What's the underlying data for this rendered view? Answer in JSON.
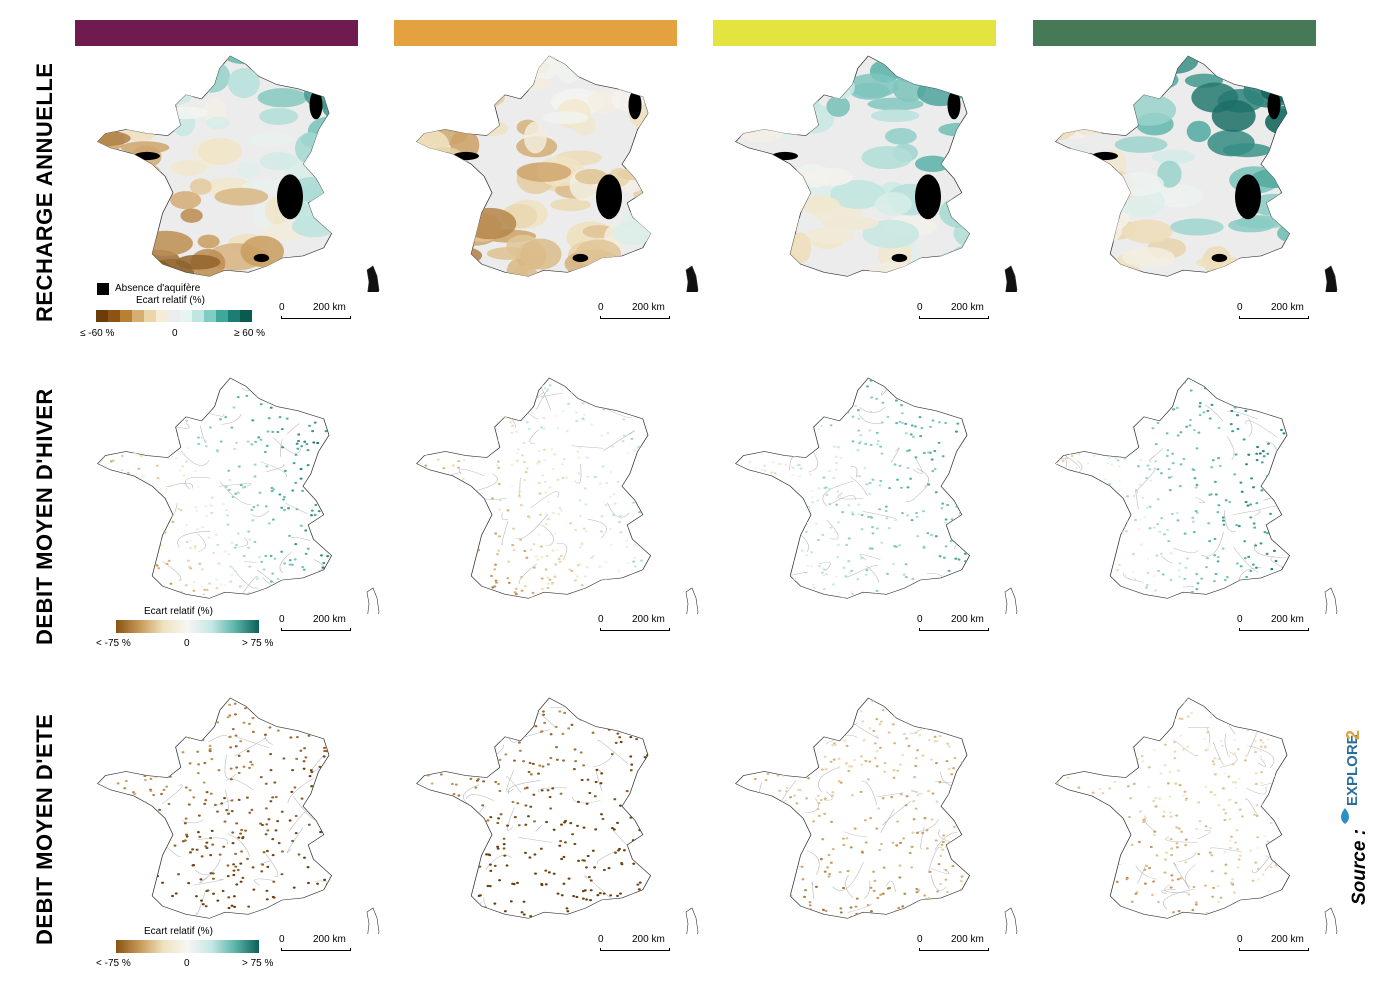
{
  "rows": {
    "recharge": "RECHARGE ANNUELLE",
    "winter": "DEBIT MOYEN D'HIVER",
    "summer": "DEBIT MOYEN D'ETE"
  },
  "scenario_colors": [
    "#701b4f",
    "#e3a23f",
    "#e3e43f",
    "#467a57"
  ],
  "scale_bar": {
    "zero": "0",
    "distance": "200 km"
  },
  "legend_recharge": {
    "absence_label": "Absence d'aquifère",
    "title": "Ecart relatif (%)",
    "min_label": "≤ -60 %",
    "mid_label": "0",
    "max_label": "≥ 60 %",
    "colors": [
      "#6b3d0c",
      "#8c5414",
      "#b9812f",
      "#d5ae72",
      "#ead6a8",
      "#f5ecd8",
      "#ededed",
      "#e8f4f2",
      "#bfe6e0",
      "#82cdc3",
      "#3fa89d",
      "#1b7d74",
      "#0b5a50"
    ]
  },
  "legend_flow": {
    "title": "Ecart relatif (%)",
    "min_label": "< -75 %",
    "mid_label": "0",
    "max_label": "> 75 %"
  },
  "source": {
    "label": "Source :",
    "logo_text": "EXPLORE2",
    "logo_colors": {
      "text": "#2b6f9b",
      "number": "#e3a23f"
    }
  }
}
